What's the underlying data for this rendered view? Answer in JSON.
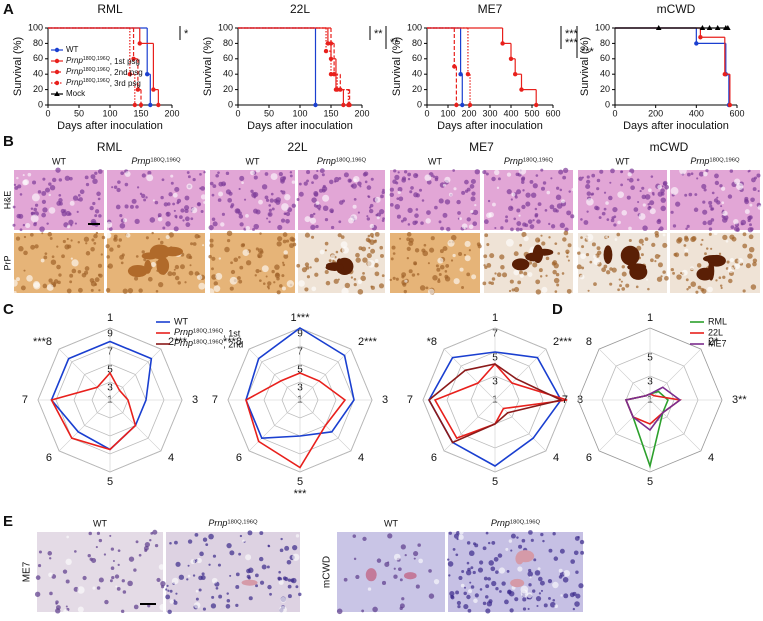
{
  "figure": {
    "panel_labels": [
      "A",
      "B",
      "C",
      "D",
      "E"
    ],
    "B": {
      "columns": [
        "RML",
        "22L",
        "ME7",
        "mCWD"
      ],
      "groups": [
        "WT",
        "Prnp180Q,196Q"
      ],
      "rows": [
        "H&E",
        "PrP"
      ]
    },
    "E": {
      "rows": [
        "ME7",
        "mCWD"
      ],
      "groups": [
        "WT",
        "Prnp180Q,196Q"
      ]
    }
  },
  "chart_data": [
    {
      "type": "survival",
      "title": "RML",
      "ylabel": "Survival (%)",
      "xlabel": "Days after inoculation",
      "xlim": [
        0,
        200
      ],
      "xticks": [
        0,
        50,
        100,
        150,
        200
      ],
      "ylim": [
        0,
        100
      ],
      "yticks": [
        0,
        20,
        40,
        60,
        80,
        100
      ],
      "series": [
        {
          "color": "#1a3fd0",
          "dash": "solid",
          "marker": "circle",
          "x": [
            0,
            160,
            165
          ],
          "values": [
            100,
            40,
            0
          ]
        },
        {
          "color": "#e8201c",
          "dash": "solid",
          "marker": "circle",
          "x": [
            0,
            148,
            170,
            178
          ],
          "values": [
            100,
            80,
            20,
            0
          ]
        },
        {
          "color": "#e8201c",
          "dash": "dashed",
          "marker": "circle",
          "x": [
            0,
            138,
            145,
            150
          ],
          "values": [
            100,
            60,
            20,
            0
          ]
        },
        {
          "color": "#e8201c",
          "dash": "dotted",
          "marker": "circle",
          "x": [
            0,
            132,
            140
          ],
          "values": [
            100,
            40,
            0
          ]
        }
      ],
      "legend": [
        {
          "name": "WT",
          "color": "#1a3fd0",
          "dash": "solid",
          "marker": "circle"
        },
        {
          "name": "Prnp180Q,196Q, 1st psg",
          "color": "#e8201c",
          "dash": "solid",
          "marker": "circle"
        },
        {
          "name": "Prnp180Q,196Q, 2nd psg",
          "color": "#e8201c",
          "dash": "dashed",
          "marker": "circle"
        },
        {
          "name": "Prnp180Q,196Q, 3rd psg",
          "color": "#e8201c",
          "dash": "dotted",
          "marker": "circle"
        },
        {
          "name": "Mock",
          "color": "#000000",
          "dash": "solid",
          "marker": "triangle"
        }
      ],
      "annotations": [
        "*"
      ]
    },
    {
      "type": "survival",
      "title": "22L",
      "ylabel": "Survival (%)",
      "xlabel": "Days after inoculation",
      "xlim": [
        0,
        200
      ],
      "xticks": [
        0,
        50,
        100,
        150,
        200
      ],
      "ylim": [
        0,
        100
      ],
      "yticks": [
        0,
        20,
        40,
        60,
        80,
        100
      ],
      "series": [
        {
          "color": "#1a3fd0",
          "dash": "solid",
          "marker": "circle",
          "x": [
            0,
            125
          ],
          "values": [
            100,
            0
          ]
        },
        {
          "color": "#e8201c",
          "dash": "solid",
          "marker": "circle",
          "x": [
            0,
            145,
            150,
            158,
            170
          ],
          "values": [
            100,
            80,
            60,
            20,
            0
          ]
        },
        {
          "color": "#e8201c",
          "dash": "dashed",
          "marker": "circle",
          "x": [
            0,
            150,
            155,
            165,
            180
          ],
          "values": [
            100,
            80,
            40,
            20,
            0
          ]
        },
        {
          "color": "#e8201c",
          "dash": "dotted",
          "marker": "circle",
          "x": [
            0,
            142,
            150,
            160,
            178
          ],
          "values": [
            100,
            70,
            40,
            20,
            0
          ]
        }
      ],
      "annotations": [
        "**",
        "**"
      ]
    },
    {
      "type": "survival",
      "title": "ME7",
      "ylabel": "Survival (%)",
      "xlabel": "Days after inoculation",
      "xlim": [
        0,
        600
      ],
      "xticks": [
        0,
        100,
        200,
        300,
        400,
        500,
        600
      ],
      "ylim": [
        0,
        100
      ],
      "yticks": [
        0,
        20,
        40,
        60,
        80,
        100
      ],
      "series": [
        {
          "color": "#1a3fd0",
          "dash": "solid",
          "marker": "circle",
          "x": [
            0,
            160,
            168
          ],
          "values": [
            100,
            40,
            0
          ]
        },
        {
          "color": "#e8201c",
          "dash": "solid",
          "marker": "circle",
          "x": [
            0,
            360,
            400,
            420,
            450,
            520
          ],
          "values": [
            100,
            80,
            60,
            40,
            20,
            0
          ]
        },
        {
          "color": "#e8201c",
          "dash": "dashed",
          "marker": "circle",
          "x": [
            0,
            130,
            140
          ],
          "values": [
            100,
            50,
            0
          ]
        },
        {
          "color": "#e8201c",
          "dash": "dotted",
          "marker": "circle",
          "x": [
            0,
            195,
            205
          ],
          "values": [
            100,
            40,
            0
          ]
        }
      ],
      "annotations": [
        "***",
        "***",
        "***"
      ]
    },
    {
      "type": "survival",
      "title": "mCWD",
      "ylabel": "Survival (%)",
      "xlabel": "Days after inoculation",
      "xlim": [
        0,
        600
      ],
      "xticks": [
        0,
        200,
        400,
        600
      ],
      "ylim": [
        0,
        100
      ],
      "yticks": [
        0,
        20,
        40,
        60,
        80,
        100
      ],
      "series": [
        {
          "color": "#1a3fd0",
          "dash": "solid",
          "marker": "circle",
          "x": [
            0,
            400,
            545,
            560
          ],
          "values": [
            100,
            80,
            40,
            0
          ]
        },
        {
          "color": "#e8201c",
          "dash": "solid",
          "marker": "circle",
          "x": [
            0,
            420,
            540,
            565
          ],
          "values": [
            100,
            88,
            40,
            0
          ]
        },
        {
          "color": "#000000",
          "dash": "solid",
          "marker": "triangle",
          "x": [
            0,
            215,
            430,
            465,
            505,
            545,
            555
          ],
          "values": [
            100,
            100,
            100,
            100,
            100,
            100,
            100
          ]
        }
      ]
    },
    {
      "type": "radar",
      "axes": [
        "1",
        "2***",
        "3",
        "4",
        "5",
        "6",
        "7",
        "***8"
      ],
      "rlim": [
        1,
        9
      ],
      "rticks": [
        1,
        3,
        5,
        7,
        9
      ],
      "series": [
        {
          "color": "#1a3fd0",
          "values": [
            7.5,
            7.5,
            5,
            5,
            6.5,
            6,
            7.5,
            7.5
          ]
        },
        {
          "color": "#e8201c",
          "values": [
            4,
            2.5,
            3,
            5,
            6.5,
            7,
            7.5,
            3
          ]
        }
      ],
      "legend": [
        {
          "name": "WT",
          "color": "#1a3fd0"
        },
        {
          "name": "Prnp180Q,196Q, 1st",
          "color": "#e8201c"
        },
        {
          "name": "Prnp180Q,196Q, 2nd",
          "color": "#8b1a1a"
        }
      ]
    },
    {
      "type": "radar",
      "axes": [
        "1***",
        "2***",
        "3",
        "4",
        "5",
        "6",
        "7",
        "***8"
      ],
      "rlim": [
        1,
        9
      ],
      "rticks": [
        1,
        3,
        5,
        7,
        9
      ],
      "series": [
        {
          "color": "#1a3fd0",
          "values": [
            9,
            8,
            7,
            6,
            5,
            7,
            7,
            7.5
          ]
        },
        {
          "color": "#e8201c",
          "values": [
            4,
            4,
            6,
            5,
            8.5,
            7.5,
            7,
            4
          ]
        }
      ],
      "annotations": [
        "***"
      ]
    },
    {
      "type": "radar",
      "axes": [
        "1",
        "2***",
        "3",
        "4",
        "5",
        "6",
        "7",
        "*8"
      ],
      "rlim": [
        1,
        7
      ],
      "rticks": [
        1,
        3,
        5,
        7
      ],
      "series": [
        {
          "color": "#1a3fd0",
          "values": [
            5,
            6,
            6.5,
            5.5,
            6.5,
            6,
            6.5,
            6
          ]
        },
        {
          "color": "#e8201c",
          "values": [
            4,
            3,
            7,
            2,
            3,
            5.5,
            6,
            3
          ]
        },
        {
          "color": "#8b1a1a",
          "values": [
            4,
            3.5,
            6.5,
            2.5,
            3,
            6,
            6.5,
            4.5
          ]
        }
      ]
    },
    {
      "type": "radar",
      "axes": [
        "1",
        "2*",
        "3**",
        "4",
        "5",
        "6",
        "7",
        "8"
      ],
      "rlim": [
        1,
        7
      ],
      "rticks": [
        1,
        3,
        5
      ],
      "series": [
        {
          "name": "RML",
          "color": "#2ca02c",
          "values": [
            1.5,
            2,
            2.5,
            2.5,
            6.5,
            3,
            3,
            1.5
          ]
        },
        {
          "name": "22L",
          "color": "#e8201c",
          "values": [
            1.5,
            1.5,
            3.5,
            2.5,
            3,
            3,
            3,
            1.5
          ]
        },
        {
          "name": "ME7",
          "color": "#7b2d8e",
          "values": [
            1.5,
            2.5,
            3.5,
            2.5,
            3.5,
            3,
            3,
            1.5
          ]
        }
      ]
    }
  ]
}
